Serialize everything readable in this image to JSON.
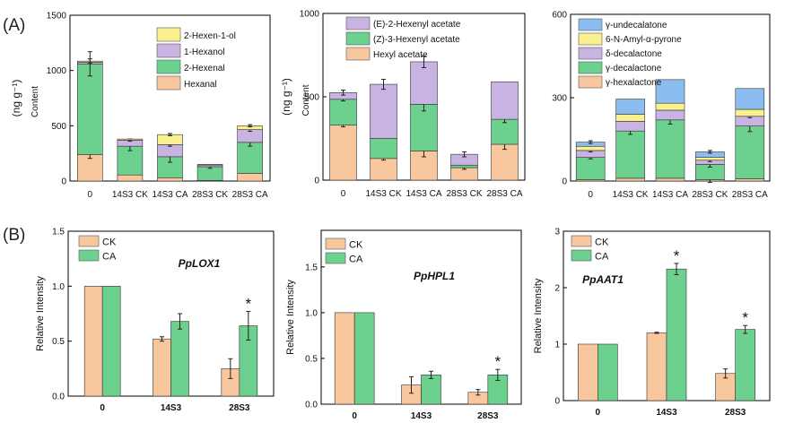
{
  "panel_labels": {
    "a": "(A)",
    "b": "(B)"
  },
  "colors": {
    "orange": "#F9C79E",
    "green": "#6CD08E",
    "purple": "#C8B3E2",
    "yellow": "#FAF08E",
    "blue": "#8CBDF0",
    "edge": "#333333"
  },
  "chart_data": [
    {
      "id": "a1",
      "type": "stacked-bar",
      "categories": [
        "0",
        "14S3 CK",
        "14S3 CA",
        "28S3 CK",
        "28S3 CA"
      ],
      "ylabel": "Content",
      "ylabel_unit": "(ng g⁻¹)",
      "ylim": [
        0,
        1500
      ],
      "yticks": [
        0,
        500,
        1000,
        1500
      ],
      "legend_position": "top-right",
      "series": [
        {
          "name": "Hexanal",
          "color": "#F9C79E",
          "values": [
            240,
            55,
            30,
            5,
            70
          ],
          "errors": [
            35,
            0,
            0,
            0,
            0
          ]
        },
        {
          "name": "2-Hexenal",
          "color": "#6CD08E",
          "values": [
            820,
            260,
            190,
            125,
            280
          ],
          "errors": [
            110,
            40,
            50,
            15,
            35
          ]
        },
        {
          "name": "1-Hexanol",
          "color": "#C8B3E2",
          "values": [
            15,
            55,
            110,
            15,
            115
          ],
          "errors": [
            0,
            10,
            15,
            0,
            15
          ]
        },
        {
          "name": "2-Hexen-1-ol",
          "color": "#FAF08E",
          "values": [
            10,
            10,
            90,
            5,
            35
          ],
          "errors": [
            20,
            0,
            10,
            0,
            10
          ]
        }
      ]
    },
    {
      "id": "a2",
      "type": "stacked-bar",
      "categories": [
        "0",
        "14S3 CK",
        "14S3 CA",
        "28S3 CK",
        "28S3 CA"
      ],
      "ylabel": "Content",
      "ylabel_unit": "(ng g⁻¹)",
      "ylim": [
        0,
        1000
      ],
      "yticks": [
        0,
        500,
        1000
      ],
      "legend_position": "top-right",
      "series": [
        {
          "name": "Hexyl acetate",
          "color": "#F9C79E",
          "values": [
            330,
            130,
            175,
            75,
            215
          ],
          "errors": [
            10,
            10,
            35,
            10,
            30
          ]
        },
        {
          "name": "(Z)-3-Hexenyl acetate",
          "color": "#6CD08E",
          "values": [
            155,
            120,
            280,
            15,
            150
          ],
          "errors": [
            10,
            0,
            40,
            0,
            20
          ]
        },
        {
          "name": "(E)-2-Hexenyl acetate",
          "color": "#C8B3E2",
          "values": [
            40,
            325,
            255,
            65,
            225
          ],
          "errors": [
            15,
            30,
            35,
            15,
            0
          ]
        }
      ]
    },
    {
      "id": "a3",
      "type": "stacked-bar",
      "categories": [
        "0",
        "14S3 CK",
        "14S3 CA",
        "28S3 CK",
        "28S3 CA"
      ],
      "ylim": [
        0,
        600
      ],
      "yticks": [
        0,
        300,
        600
      ],
      "legend_position": "top-right",
      "series": [
        {
          "name": "γ-hexalactone",
          "color": "#F9C79E",
          "values": [
            5,
            10,
            10,
            5,
            8
          ],
          "errors": [
            0,
            0,
            0,
            10,
            0
          ]
        },
        {
          "name": "γ-decalactone",
          "color": "#6CD08E",
          "values": [
            80,
            170,
            210,
            55,
            190
          ],
          "errors": [
            5,
            12,
            15,
            10,
            20
          ]
        },
        {
          "name": "δ-decalactone",
          "color": "#C8B3E2",
          "values": [
            25,
            35,
            35,
            15,
            35
          ],
          "errors": [
            5,
            0,
            0,
            5,
            5
          ]
        },
        {
          "name": "6-N-Amyl-α-pyrone",
          "color": "#FAF08E",
          "values": [
            15,
            25,
            25,
            10,
            25
          ],
          "errors": [
            0,
            0,
            0,
            0,
            0
          ]
        },
        {
          "name": "γ-undecalatone",
          "color": "#8CBDF0",
          "values": [
            15,
            55,
            85,
            20,
            75
          ],
          "errors": [
            5,
            0,
            0,
            5,
            0
          ]
        }
      ]
    },
    {
      "id": "b1",
      "type": "grouped-bar",
      "title": "PpLOX1",
      "categories": [
        "0",
        "14S3",
        "28S3"
      ],
      "ylabel": "Relative Intensity",
      "ylim": [
        0,
        1.5
      ],
      "yticks": [
        "0.0",
        "0.5",
        "1.0",
        "1.5"
      ],
      "legend_position": "top-left",
      "series": [
        {
          "name": "CK",
          "color": "#F9C79E",
          "values": [
            1.0,
            0.52,
            0.25
          ],
          "errors": [
            0.0,
            0.02,
            0.09
          ]
        },
        {
          "name": "CA",
          "color": "#6CD08E",
          "values": [
            1.0,
            0.68,
            0.64
          ],
          "errors": [
            0.0,
            0.07,
            0.13
          ]
        }
      ],
      "significance": [
        {
          "index": 2,
          "series": 1,
          "mark": "*"
        }
      ]
    },
    {
      "id": "b2",
      "type": "grouped-bar",
      "title": "PpHPL1",
      "categories": [
        "0",
        "14S3",
        "28S3"
      ],
      "ylabel": "Relative Intensity",
      "ylim": [
        0,
        1.9
      ],
      "yticks": [
        "0.0",
        "0.5",
        "1.0",
        "1.5"
      ],
      "legend_position": "top-left",
      "series": [
        {
          "name": "CK",
          "color": "#F9C79E",
          "values": [
            1.0,
            0.21,
            0.13
          ],
          "errors": [
            0.0,
            0.09,
            0.03
          ]
        },
        {
          "name": "CA",
          "color": "#6CD08E",
          "values": [
            1.0,
            0.32,
            0.32
          ],
          "errors": [
            0.0,
            0.04,
            0.06
          ]
        }
      ],
      "significance": [
        {
          "index": 2,
          "series": 1,
          "mark": "*"
        }
      ]
    },
    {
      "id": "b3",
      "type": "grouped-bar",
      "title": "PpAAT1",
      "categories": [
        "0",
        "14S3",
        "28S3"
      ],
      "ylabel": "Relative Intensity",
      "ylim": [
        0,
        3
      ],
      "yticks": [
        "0",
        "1",
        "2",
        "3"
      ],
      "legend_position": "top-left",
      "series": [
        {
          "name": "CK",
          "color": "#F9C79E",
          "values": [
            1.0,
            1.2,
            0.48
          ],
          "errors": [
            0.0,
            0.01,
            0.08
          ]
        },
        {
          "name": "CA",
          "color": "#6CD08E",
          "values": [
            1.0,
            2.33,
            1.26
          ],
          "errors": [
            0.0,
            0.1,
            0.07
          ]
        }
      ],
      "significance": [
        {
          "index": 1,
          "series": 1,
          "mark": "*"
        },
        {
          "index": 2,
          "series": 1,
          "mark": "*"
        }
      ]
    }
  ]
}
